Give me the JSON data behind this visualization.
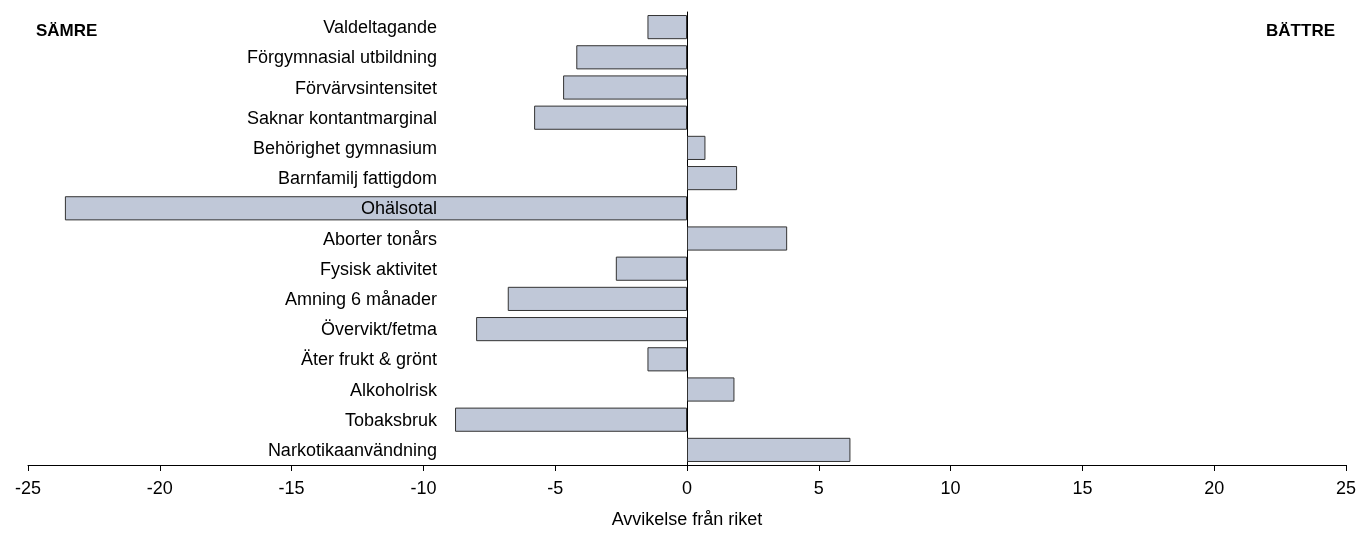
{
  "chart_data": {
    "type": "bar",
    "orientation": "horizontal",
    "xlabel": "Avvikelse från riket",
    "categories": [
      "Valdeltagande",
      "Förgymnasial utbildning",
      "Förvärvsintensitet",
      "Saknar kontantmarginal",
      "Behörighet gymnasium",
      "Barnfamilj fattigdom",
      "Ohälsotal",
      "Aborter tonårs",
      "Fysisk aktivitet",
      "Amning 6 månader",
      "Övervikt/fetma",
      "Äter frukt & grönt",
      "Alkoholrisk",
      "Tobaksbruk",
      "Narkotikaanvändning"
    ],
    "values": [
      -1.5,
      -4.2,
      -4.7,
      -5.8,
      0.7,
      1.9,
      -23.6,
      3.8,
      -2.7,
      -6.8,
      -8.0,
      -1.5,
      1.8,
      -8.8,
      6.2
    ],
    "color": "#c0c8d8",
    "xlim": [
      -25,
      25
    ],
    "xticks": [
      -25,
      -20,
      -15,
      -10,
      -5,
      0,
      5,
      10,
      15,
      20,
      25
    ],
    "annotations": [
      "SÄMRE",
      "BÄTTRE"
    ]
  }
}
